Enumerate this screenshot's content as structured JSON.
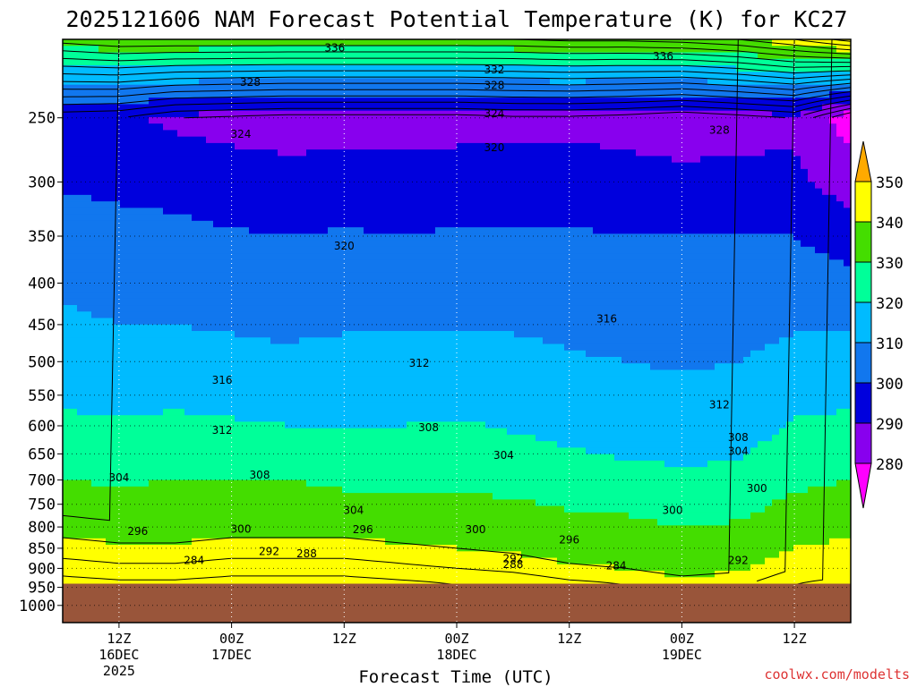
{
  "chart_data": {
    "type": "heatmap",
    "title": "2025121606 NAM Forecast Potential Temperature (K) for KC27",
    "xlabel": "Forecast Time (UTC)",
    "credit": "coolwx.com/modelts",
    "y_axis": {
      "label": "",
      "scale": "log",
      "reversed": true,
      "ylim": [
        200,
        1050
      ],
      "ticks": [
        250,
        300,
        350,
        400,
        450,
        500,
        550,
        600,
        650,
        700,
        750,
        800,
        850,
        900,
        950,
        1000
      ]
    },
    "x_axis": {
      "ticks": [
        {
          "label": "12Z",
          "sub1": "16DEC",
          "sub2": "2025",
          "hour": 6
        },
        {
          "label": "00Z",
          "sub1": "17DEC",
          "sub2": "",
          "hour": 18
        },
        {
          "label": "12Z",
          "sub1": "",
          "sub2": "",
          "hour": 30
        },
        {
          "label": "00Z",
          "sub1": "18DEC",
          "sub2": "",
          "hour": 42
        },
        {
          "label": "12Z",
          "sub1": "",
          "sub2": "",
          "hour": 54
        },
        {
          "label": "00Z",
          "sub1": "19DEC",
          "sub2": "",
          "hour": 66
        },
        {
          "label": "12Z",
          "sub1": "",
          "sub2": "",
          "hour": 78
        }
      ],
      "xlim": [
        0,
        84
      ]
    },
    "grid": true,
    "colorbar": {
      "placement": "right",
      "labels": [
        350,
        340,
        330,
        320,
        310,
        300,
        290,
        280
      ],
      "colors": {
        "below_280": "#ff00ff",
        "280": "#8800ee",
        "290": "#0000dd",
        "300": "#1177ee",
        "310": "#00bbff",
        "320": "#00ff99",
        "330": "#44dd00",
        "340": "#ffff00",
        "above_350": "#ffaa00"
      }
    },
    "ground_color": "#99553a",
    "surface_pressure_hpa": 940,
    "levels_hpa": [
      200,
      250,
      300,
      350,
      400,
      450,
      500,
      550,
      600,
      650,
      700,
      750,
      800,
      850,
      900,
      940
    ],
    "hours": [
      0,
      6,
      12,
      18,
      24,
      30,
      36,
      42,
      48,
      54,
      60,
      66,
      72,
      78,
      84
    ],
    "theta_k": [
      [
        334,
        293,
        299,
        304,
        308,
        312,
        315,
        318,
        322,
        326,
        330,
        334,
        338,
        342,
        346,
        350
      ],
      [
        336,
        292,
        298,
        303,
        306,
        310,
        313,
        317,
        321,
        325,
        329,
        333,
        337,
        341,
        345,
        349
      ],
      [
        336,
        288,
        296,
        303,
        307,
        310,
        314,
        318,
        322,
        326,
        330,
        333,
        337,
        341,
        345,
        349
      ],
      [
        336,
        287,
        294,
        301,
        305,
        309,
        313,
        317,
        321,
        326,
        330,
        334,
        338,
        342,
        346,
        350
      ],
      [
        336,
        286,
        293,
        300,
        304,
        308,
        312,
        316,
        320,
        325,
        330,
        334,
        338,
        342,
        346,
        350
      ],
      [
        336,
        286,
        294,
        301,
        305,
        309,
        313,
        317,
        320,
        323,
        328,
        333,
        338,
        342,
        346,
        350
      ],
      [
        336,
        286,
        294,
        300,
        304,
        309,
        314,
        317,
        320,
        323,
        327,
        332,
        337,
        341,
        345,
        349
      ],
      [
        336,
        286,
        295,
        301,
        305,
        309,
        313,
        317,
        321,
        324,
        328,
        332,
        336,
        340,
        344,
        348
      ],
      [
        336,
        287,
        295,
        301,
        305,
        309,
        313,
        316,
        319,
        323,
        327,
        331,
        335,
        339,
        343,
        347
      ],
      [
        337,
        287,
        295,
        301,
        305,
        308,
        311,
        314,
        317,
        321,
        325,
        329,
        333,
        337,
        341,
        345
      ],
      [
        337,
        286,
        294,
        300,
        304,
        307,
        310,
        313,
        316,
        319,
        324,
        328,
        332,
        336,
        340,
        344
      ],
      [
        338,
        284,
        293,
        300,
        303,
        306,
        309,
        312,
        315,
        318,
        322,
        326,
        330,
        334,
        338,
        342
      ],
      [
        340,
        286,
        293,
        300,
        304,
        307,
        310,
        313,
        316,
        319,
        323,
        327,
        331,
        335,
        339,
        343
      ],
      [
        344,
        288,
        292,
        300,
        305,
        309,
        313,
        317,
        321,
        324,
        328,
        332,
        336,
        340,
        344,
        348
      ],
      [
        350,
        275,
        285,
        295,
        303,
        309,
        314,
        318,
        322,
        326,
        330,
        334,
        338,
        342,
        346,
        350
      ]
    ],
    "contour_labels": [
      {
        "text": "336",
        "hour": 29,
        "p": 205
      },
      {
        "text": "336",
        "hour": 64,
        "p": 210
      },
      {
        "text": "332",
        "hour": 46,
        "p": 218
      },
      {
        "text": "328",
        "hour": 20,
        "p": 226
      },
      {
        "text": "328",
        "hour": 46,
        "p": 228
      },
      {
        "text": "324",
        "hour": 19,
        "p": 262
      },
      {
        "text": "324",
        "hour": 46,
        "p": 247
      },
      {
        "text": "328",
        "hour": 70,
        "p": 259
      },
      {
        "text": "320",
        "hour": 46,
        "p": 272
      },
      {
        "text": "320",
        "hour": 30,
        "p": 360
      },
      {
        "text": "316",
        "hour": 58,
        "p": 443
      },
      {
        "text": "312",
        "hour": 38,
        "p": 502
      },
      {
        "text": "316",
        "hour": 17,
        "p": 527
      },
      {
        "text": "312",
        "hour": 70,
        "p": 565
      },
      {
        "text": "312",
        "hour": 17,
        "p": 608
      },
      {
        "text": "308",
        "hour": 39,
        "p": 603
      },
      {
        "text": "308",
        "hour": 72,
        "p": 620
      },
      {
        "text": "304",
        "hour": 72,
        "p": 645
      },
      {
        "text": "304",
        "hour": 47,
        "p": 653
      },
      {
        "text": "308",
        "hour": 21,
        "p": 690
      },
      {
        "text": "304",
        "hour": 6,
        "p": 695
      },
      {
        "text": "300",
        "hour": 74,
        "p": 717
      },
      {
        "text": "304",
        "hour": 31,
        "p": 763
      },
      {
        "text": "300",
        "hour": 65,
        "p": 763
      },
      {
        "text": "296",
        "hour": 8,
        "p": 810
      },
      {
        "text": "300",
        "hour": 19,
        "p": 805
      },
      {
        "text": "296",
        "hour": 32,
        "p": 806
      },
      {
        "text": "300",
        "hour": 44,
        "p": 806
      },
      {
        "text": "296",
        "hour": 54,
        "p": 830
      },
      {
        "text": "292",
        "hour": 22,
        "p": 858
      },
      {
        "text": "288",
        "hour": 26,
        "p": 863
      },
      {
        "text": "292",
        "hour": 48,
        "p": 875
      },
      {
        "text": "284",
        "hour": 14,
        "p": 880
      },
      {
        "text": "288",
        "hour": 48,
        "p": 890
      },
      {
        "text": "284",
        "hour": 59,
        "p": 893
      },
      {
        "text": "292",
        "hour": 72,
        "p": 880
      }
    ]
  }
}
